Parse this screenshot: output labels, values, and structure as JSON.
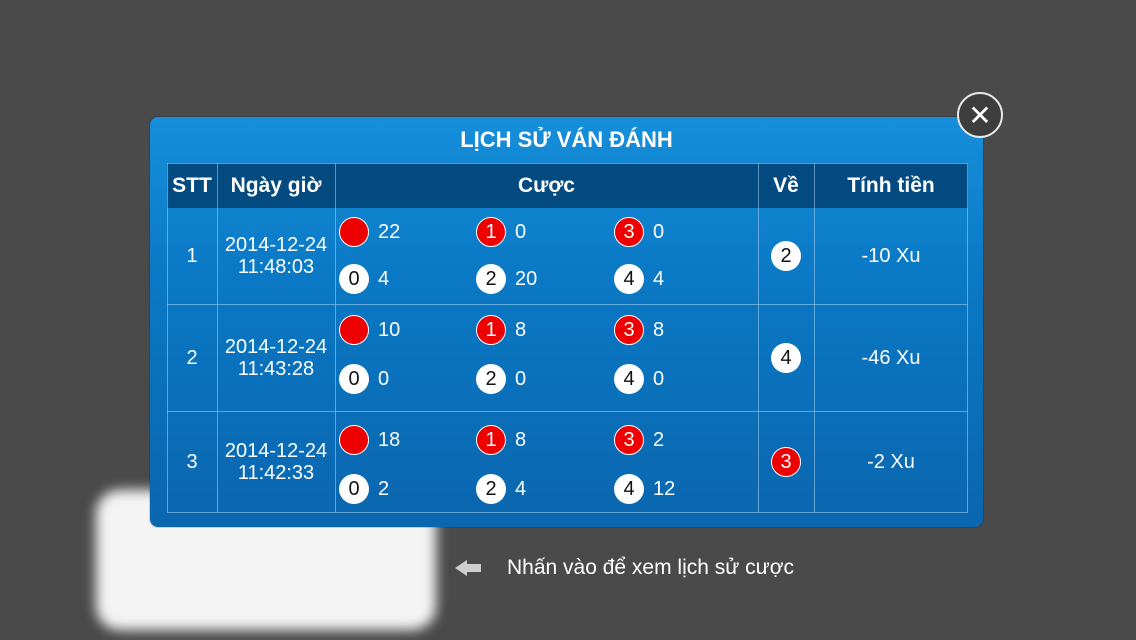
{
  "dialog": {
    "title": "LỊCH SỬ VÁN ĐÁNH",
    "close_label": "✕",
    "headers": {
      "stt": "STT",
      "datetime": "Ngày giờ",
      "bet": "Cược",
      "result": "Về",
      "payout": "Tính tiền"
    },
    "rows": [
      {
        "stt": "1",
        "date": "2014-12-24",
        "time": "11:48:03",
        "bets_top": [
          {
            "ball": "",
            "color": "red",
            "value": "22"
          },
          {
            "ball": "1",
            "color": "red",
            "value": "0"
          },
          {
            "ball": "3",
            "color": "red",
            "value": "0"
          }
        ],
        "bets_bottom": [
          {
            "ball": "0",
            "color": "white",
            "value": "4"
          },
          {
            "ball": "2",
            "color": "white",
            "value": "20"
          },
          {
            "ball": "4",
            "color": "white",
            "value": "4"
          }
        ],
        "result": "2",
        "result_color": "white",
        "payout": "-10 Xu"
      },
      {
        "stt": "2",
        "date": "2014-12-24",
        "time": "11:43:28",
        "bets_top": [
          {
            "ball": "",
            "color": "red",
            "value": "10"
          },
          {
            "ball": "1",
            "color": "red",
            "value": "8"
          },
          {
            "ball": "3",
            "color": "red",
            "value": "8"
          }
        ],
        "bets_bottom": [
          {
            "ball": "0",
            "color": "white",
            "value": "0"
          },
          {
            "ball": "2",
            "color": "white",
            "value": "0"
          },
          {
            "ball": "4",
            "color": "white",
            "value": "0"
          }
        ],
        "result": "4",
        "result_color": "white",
        "payout": "-46 Xu"
      },
      {
        "stt": "3",
        "date": "2014-12-24",
        "time": "11:42:33",
        "bets_top": [
          {
            "ball": "",
            "color": "red",
            "value": "18"
          },
          {
            "ball": "1",
            "color": "red",
            "value": "8"
          },
          {
            "ball": "3",
            "color": "red",
            "value": "2"
          }
        ],
        "bets_bottom": [
          {
            "ball": "0",
            "color": "white",
            "value": "2"
          },
          {
            "ball": "2",
            "color": "white",
            "value": "4"
          },
          {
            "ball": "4",
            "color": "white",
            "value": "12"
          }
        ],
        "result": "3",
        "result_color": "red",
        "payout": "-2 Xu"
      }
    ]
  },
  "hint": {
    "icon": "back-arrow-icon",
    "text": "Nhấn vào để xem lịch sử cược"
  },
  "colors": {
    "dialog_blue": "#0a78c4",
    "header_navy": "#034a80",
    "ball_red": "#ee0000",
    "ball_white": "#ffffff"
  }
}
